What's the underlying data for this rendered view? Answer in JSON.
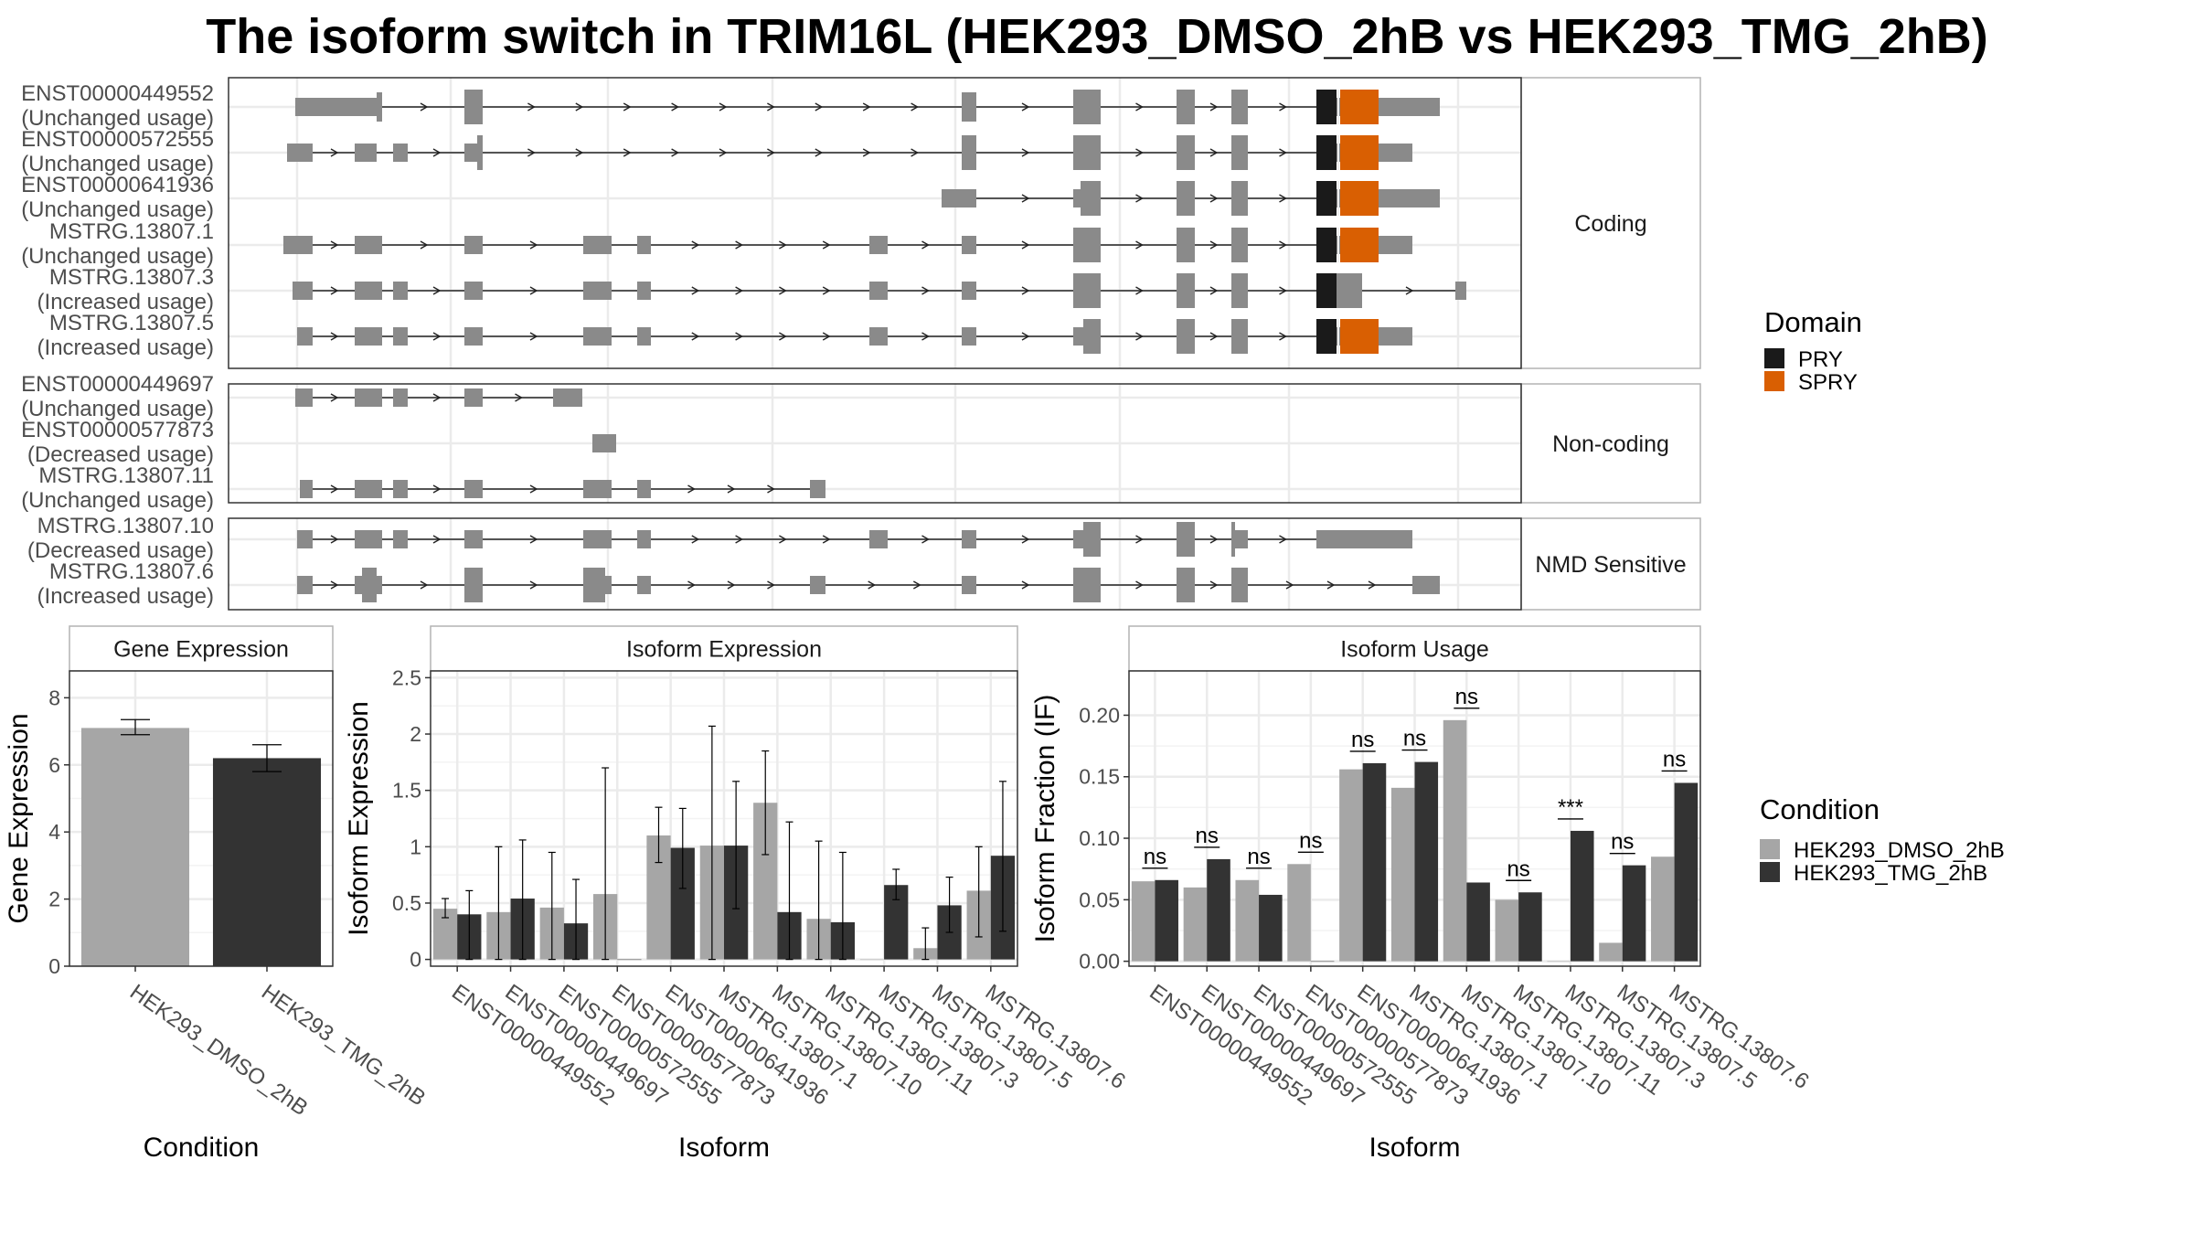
{
  "title": "The isoform switch in TRIM16L (HEK293_DMSO_2hB vs HEK293_TMG_2hB)",
  "colors": {
    "exon": "#8a8a8a",
    "pry": "#1a1a1a",
    "spry": "#d95f02",
    "dmso": "#a6a6a6",
    "tmg": "#333333",
    "grid": "#ebebeb",
    "panel_border": "#333333",
    "strip_border": "#b3b3b3"
  },
  "structure": {
    "groups": [
      {
        "label": "Coding",
        "rows": [
          {
            "id": "ENST00000449552",
            "usage": "(Unchanged usage)"
          },
          {
            "id": "ENST00000572555",
            "usage": "(Unchanged usage)"
          },
          {
            "id": "ENST00000641936",
            "usage": "(Unchanged usage)"
          },
          {
            "id": "MSTRG.13807.1",
            "usage": "(Unchanged usage)"
          },
          {
            "id": "MSTRG.13807.3",
            "usage": "(Increased usage)"
          },
          {
            "id": "MSTRG.13807.5",
            "usage": "(Increased usage)"
          }
        ]
      },
      {
        "label": "Non-coding",
        "rows": [
          {
            "id": "ENST00000449697",
            "usage": "(Unchanged usage)"
          },
          {
            "id": "ENST00000577873",
            "usage": "(Decreased usage)"
          },
          {
            "id": "MSTRG.13807.11",
            "usage": "(Unchanged usage)"
          }
        ]
      },
      {
        "label": "NMD Sensitive",
        "rows": [
          {
            "id": "MSTRG.13807.10",
            "usage": "(Decreased usage)"
          },
          {
            "id": "MSTRG.13807.6",
            "usage": "(Increased usage)"
          }
        ]
      }
    ]
  },
  "legend_domain": {
    "title": "Domain",
    "items": [
      "PRY",
      "SPRY"
    ]
  },
  "legend_condition": {
    "title": "Condition",
    "items": [
      "HEK293_DMSO_2hB",
      "HEK293_TMG_2hB"
    ]
  },
  "chart_data": [
    {
      "type": "bar",
      "panel_title": "Gene Expression",
      "xlabel": "Condition",
      "ylabel": "Gene Expression",
      "categories": [
        "HEK293_DMSO_2hB",
        "HEK293_TMG_2hB"
      ],
      "values": [
        7.1,
        6.2
      ],
      "error_low": [
        6.9,
        5.8
      ],
      "error_high": [
        7.35,
        6.6
      ],
      "ylim": [
        0,
        8.8
      ],
      "yticks": [
        0,
        2,
        4,
        6,
        8
      ]
    },
    {
      "type": "bar",
      "panel_title": "Isoform Expression",
      "xlabel": "Isoform",
      "ylabel": "Isoform Expression",
      "categories": [
        "ENST00000449552",
        "ENST00000449697",
        "ENST00000572555",
        "ENST00000577873",
        "ENST00000641936",
        "MSTRG.13807.1",
        "MSTRG.13807.10",
        "MSTRG.13807.11",
        "MSTRG.13807.3",
        "MSTRG.13807.5",
        "MSTRG.13807.6"
      ],
      "series": [
        {
          "name": "HEK293_DMSO_2hB",
          "values": [
            0.45,
            0.42,
            0.46,
            0.58,
            1.1,
            1.01,
            1.39,
            0.36,
            0.0,
            0.1,
            0.61
          ],
          "error_low": [
            0.37,
            0.0,
            0.0,
            0.0,
            0.86,
            0.0,
            0.93,
            0.0,
            0.0,
            0.0,
            0.2
          ],
          "error_high": [
            0.54,
            1.0,
            0.95,
            1.7,
            1.35,
            2.07,
            1.85,
            1.05,
            0.0,
            0.28,
            1.0
          ]
        },
        {
          "name": "HEK293_TMG_2hB",
          "values": [
            0.4,
            0.54,
            0.32,
            0.0,
            0.99,
            1.01,
            0.42,
            0.33,
            0.66,
            0.48,
            0.92
          ],
          "error_low": [
            0.0,
            0.0,
            0.0,
            0.0,
            0.63,
            0.45,
            0.0,
            0.0,
            0.53,
            0.24,
            0.25
          ],
          "error_high": [
            0.61,
            1.06,
            0.71,
            0.0,
            1.34,
            1.58,
            1.22,
            0.95,
            0.8,
            0.73,
            1.58
          ]
        }
      ],
      "ylim": [
        -0.06,
        2.56
      ],
      "yticks": [
        0.0,
        0.5,
        1.0,
        1.5,
        2.0,
        2.5
      ]
    },
    {
      "type": "bar",
      "panel_title": "Isoform Usage",
      "xlabel": "Isoform",
      "ylabel": "Isoform Fraction (IF)",
      "categories": [
        "ENST00000449552",
        "ENST00000449697",
        "ENST00000572555",
        "ENST00000577873",
        "ENST00000641936",
        "MSTRG.13807.1",
        "MSTRG.13807.10",
        "MSTRG.13807.11",
        "MSTRG.13807.3",
        "MSTRG.13807.5",
        "MSTRG.13807.6"
      ],
      "series": [
        {
          "name": "HEK293_DMSO_2hB",
          "values": [
            0.065,
            0.06,
            0.066,
            0.079,
            0.156,
            0.141,
            0.196,
            0.05,
            0.0,
            0.015,
            0.085
          ]
        },
        {
          "name": "HEK293_TMG_2hB",
          "values": [
            0.066,
            0.083,
            0.054,
            0.0,
            0.161,
            0.162,
            0.064,
            0.056,
            0.106,
            0.078,
            0.145
          ]
        }
      ],
      "significance": [
        "ns",
        "ns",
        "ns",
        "ns",
        "ns",
        "ns",
        "ns",
        "ns",
        "***",
        "ns",
        "ns"
      ],
      "ylim": [
        -0.004,
        0.236
      ],
      "yticks": [
        0.0,
        0.05,
        0.1,
        0.15,
        0.2
      ],
      "ytick_labels": [
        "0.00",
        "0.05",
        "0.10",
        "0.15",
        "0.20"
      ]
    }
  ]
}
